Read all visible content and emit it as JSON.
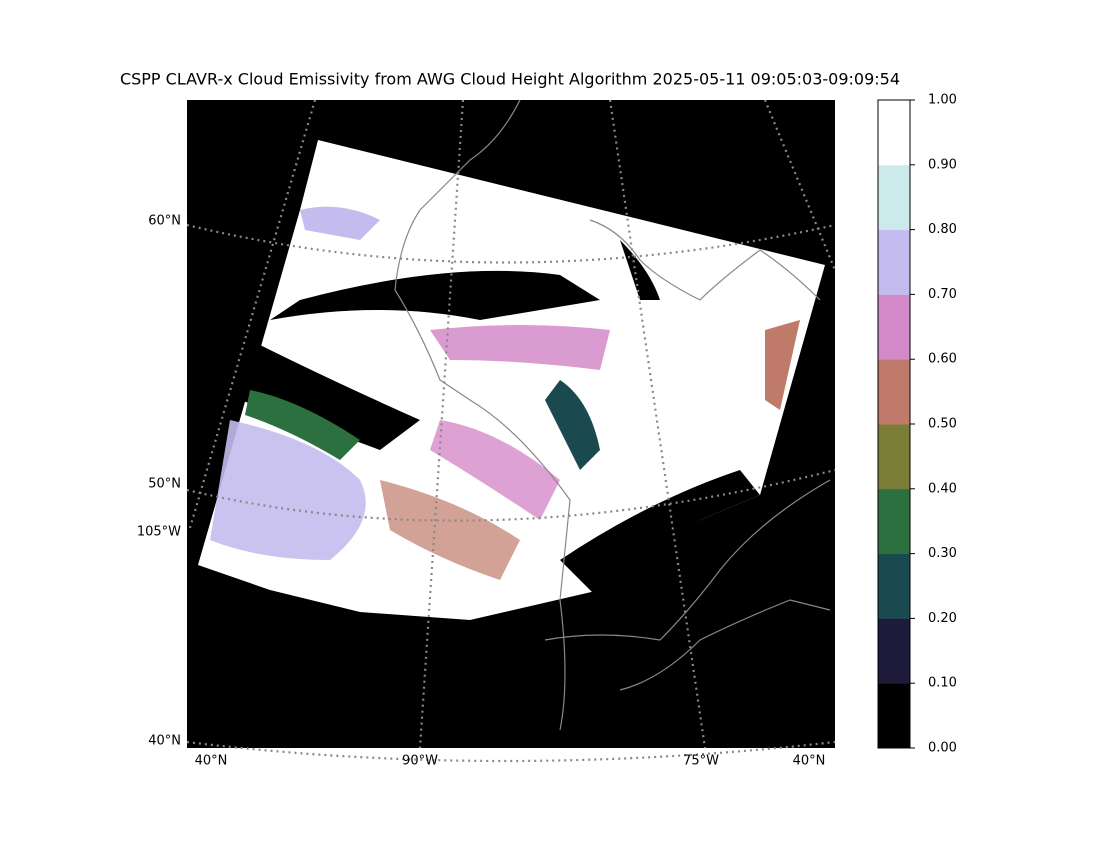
{
  "title": "CSPP CLAVR-x Cloud Emissivity from AWG Cloud Height Algorithm 2025-05-11 09:05:03-09:09:54",
  "map": {
    "left_labels": [
      "60°N",
      "50°N",
      "105°W",
      "40°N"
    ],
    "bottom_labels": [
      "40°N",
      "90°W",
      "75°W",
      "40°N"
    ]
  },
  "colorbar": {
    "ticks": [
      {
        "value": 0,
        "label": "0.00"
      },
      {
        "value": 0.1,
        "label": "0.10"
      },
      {
        "value": 0.2,
        "label": "0.20"
      },
      {
        "value": 0.3,
        "label": "0.30"
      },
      {
        "value": 0.4,
        "label": "0.40"
      },
      {
        "value": 0.5,
        "label": "0.50"
      },
      {
        "value": 0.6,
        "label": "0.60"
      },
      {
        "value": 0.7,
        "label": "0.70"
      },
      {
        "value": 0.8,
        "label": "0.80"
      },
      {
        "value": 0.9,
        "label": "0.90"
      },
      {
        "value": 1,
        "label": "1.00"
      }
    ],
    "colors": [
      "#000000",
      "#1e1a3a",
      "#1a4a50",
      "#2d7040",
      "#7a7d35",
      "#c07a6a",
      "#d48ac8",
      "#c4bcee",
      "#cce9ec",
      "#ffffff"
    ]
  }
}
